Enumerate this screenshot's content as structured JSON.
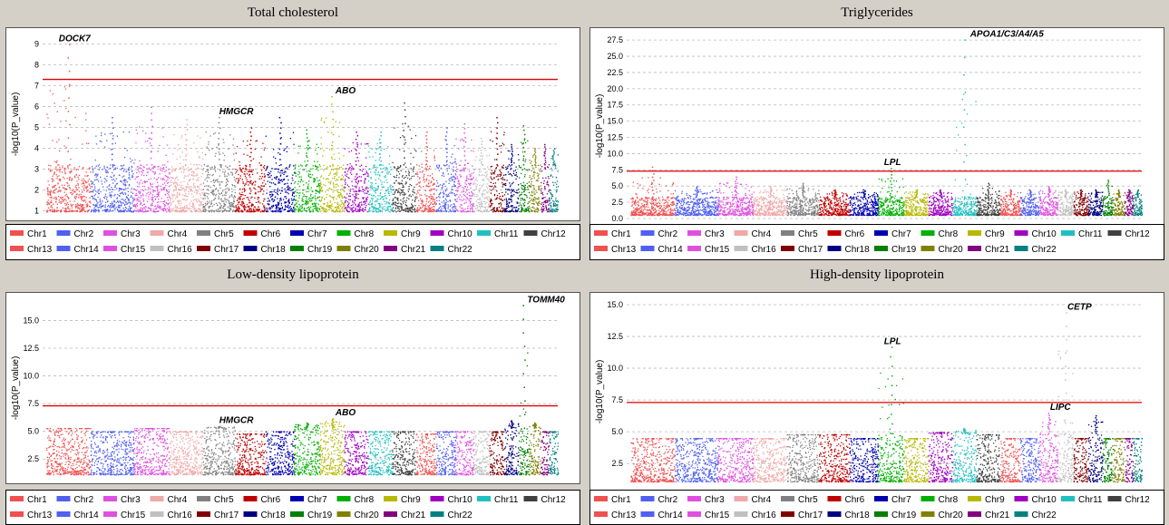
{
  "legend": [
    "Chr1",
    "Chr2",
    "Chr3",
    "Chr4",
    "Chr5",
    "Chr6",
    "Chr7",
    "Chr8",
    "Chr9",
    "Chr10",
    "Chr11",
    "Chr12",
    "Chr13",
    "Chr14",
    "Chr15",
    "Chr16",
    "Chr17",
    "Chr18",
    "Chr19",
    "Chr20",
    "Chr21",
    "Chr22"
  ],
  "colors": [
    "#f05050",
    "#5060f0",
    "#e050e0",
    "#f0a8a8",
    "#808080",
    "#c00000",
    "#0000b0",
    "#00b000",
    "#b8b800",
    "#a000c0",
    "#20c0c0",
    "#404040",
    "#f05050",
    "#5060f0",
    "#e050e0",
    "#c0c0c0",
    "#800000",
    "#000080",
    "#008000",
    "#808000",
    "#800080",
    "#008080"
  ],
  "chart_data": [
    {
      "type": "scatter",
      "title": "Total cholesterol",
      "ylabel": "-log10(P_value)",
      "xlabel": "",
      "ylim": [
        0.8,
        9.5
      ],
      "yticks": [
        1,
        2,
        3,
        4,
        5,
        6,
        7,
        8,
        9
      ],
      "ytick_decimals": 0,
      "threshold": 7.3,
      "series": [
        "Chr1",
        "Chr2",
        "Chr3",
        "Chr4",
        "Chr5",
        "Chr6",
        "Chr7",
        "Chr8",
        "Chr9",
        "Chr10",
        "Chr11",
        "Chr12",
        "Chr13",
        "Chr14",
        "Chr15",
        "Chr16",
        "Chr17",
        "Chr18",
        "Chr19",
        "Chr20",
        "Chr21",
        "Chr22"
      ],
      "chr_max": [
        9.0,
        5.5,
        6.0,
        5.4,
        5.5,
        5.0,
        5.5,
        4.9,
        6.5,
        4.8,
        4.8,
        6.2,
        4.8,
        5.0,
        5.2,
        4.5,
        5.5,
        4.2,
        5.1,
        4.0,
        4.2,
        4.0
      ],
      "annotations": [
        {
          "text": "DOCK7",
          "chr": 1,
          "pos": 0.2,
          "y": 9.0
        },
        {
          "text": "HMGCR",
          "chr": 5,
          "pos": 0.4,
          "y": 5.5
        },
        {
          "text": "ABO",
          "chr": 9,
          "pos": 0.5,
          "y": 6.5
        }
      ]
    },
    {
      "type": "scatter",
      "title": "Triglycerides",
      "ylabel": "-log10(P_value)",
      "xlabel": "",
      "ylim": [
        0,
        28.5
      ],
      "yticks": [
        0,
        2.5,
        5,
        7.5,
        10,
        12.5,
        15,
        17.5,
        20,
        22.5,
        25,
        27.5
      ],
      "ytick_decimals": 1,
      "threshold": 7.3,
      "series": [
        "Chr1",
        "Chr2",
        "Chr3",
        "Chr4",
        "Chr5",
        "Chr6",
        "Chr7",
        "Chr8",
        "Chr9",
        "Chr10",
        "Chr11",
        "Chr12",
        "Chr13",
        "Chr14",
        "Chr15",
        "Chr16",
        "Chr17",
        "Chr18",
        "Chr19",
        "Chr20",
        "Chr21",
        "Chr22"
      ],
      "chr_max": [
        8.0,
        5.0,
        6.5,
        5.0,
        5.5,
        4.5,
        4.5,
        7.8,
        4.5,
        4.5,
        27.6,
        5.5,
        4.5,
        4.5,
        5.0,
        4.5,
        4.5,
        4.5,
        6.0,
        4.5,
        4.5,
        4.5
      ],
      "annotations": [
        {
          "text": "APOA1/C3/A4/A5",
          "chr": 11,
          "pos": 0.6,
          "y": 27.6
        },
        {
          "text": "LPL",
          "chr": 8,
          "pos": 0.1,
          "y": 7.8
        }
      ]
    },
    {
      "type": "scatter",
      "title": "Low-density lipoprotein",
      "ylabel": "-log10(P_value)",
      "xlabel": "",
      "ylim": [
        0.8,
        17
      ],
      "yticks": [
        2.5,
        5,
        7.5,
        10,
        12.5,
        15
      ],
      "ytick_decimals": 1,
      "threshold": 7.3,
      "series": [
        "Chr1",
        "Chr2",
        "Chr3",
        "Chr4",
        "Chr5",
        "Chr6",
        "Chr7",
        "Chr8",
        "Chr9",
        "Chr10",
        "Chr11",
        "Chr12",
        "Chr13",
        "Chr14",
        "Chr15",
        "Chr16",
        "Chr17",
        "Chr18",
        "Chr19",
        "Chr20",
        "Chr21",
        "Chr22"
      ],
      "chr_max": [
        5.3,
        5.0,
        5.3,
        5.0,
        5.5,
        4.8,
        5.0,
        5.8,
        6.2,
        5.0,
        5.0,
        5.0,
        4.8,
        5.0,
        5.0,
        5.0,
        5.0,
        6.0,
        16.4,
        5.8,
        5.0,
        5.0
      ],
      "annotations": [
        {
          "text": "TOMM40",
          "chr": 19,
          "pos": 0.5,
          "y": 16.4
        },
        {
          "text": "HMGCR",
          "chr": 5,
          "pos": 0.4,
          "y": 5.5
        },
        {
          "text": "ABO",
          "chr": 9,
          "pos": 0.5,
          "y": 6.2
        }
      ]
    },
    {
      "type": "scatter",
      "title": "High-density lipoprotein",
      "ylabel": "-log10(P_value)",
      "xlabel": "",
      "ylim": [
        0.8,
        15.5
      ],
      "yticks": [
        2.5,
        5,
        7.5,
        10,
        12.5,
        15
      ],
      "ytick_decimals": 1,
      "threshold": 7.3,
      "series": [
        "Chr1",
        "Chr2",
        "Chr3",
        "Chr4",
        "Chr5",
        "Chr6",
        "Chr7",
        "Chr8",
        "Chr9",
        "Chr10",
        "Chr11",
        "Chr12",
        "Chr13",
        "Chr14",
        "Chr15",
        "Chr16",
        "Chr17",
        "Chr18",
        "Chr19",
        "Chr20",
        "Chr21",
        "Chr22"
      ],
      "chr_max": [
        4.5,
        4.5,
        4.5,
        4.5,
        4.8,
        4.8,
        4.5,
        11.7,
        4.5,
        5.0,
        5.3,
        4.8,
        4.5,
        4.5,
        6.5,
        14.4,
        4.5,
        6.3,
        4.5,
        4.5,
        4.5,
        4.5
      ],
      "annotations": [
        {
          "text": "CETP",
          "chr": 16,
          "pos": 0.4,
          "y": 14.4
        },
        {
          "text": "LPL",
          "chr": 8,
          "pos": 0.1,
          "y": 11.7
        },
        {
          "text": "LIPC",
          "chr": 15,
          "pos": 0.4,
          "y": 6.5
        }
      ]
    }
  ]
}
